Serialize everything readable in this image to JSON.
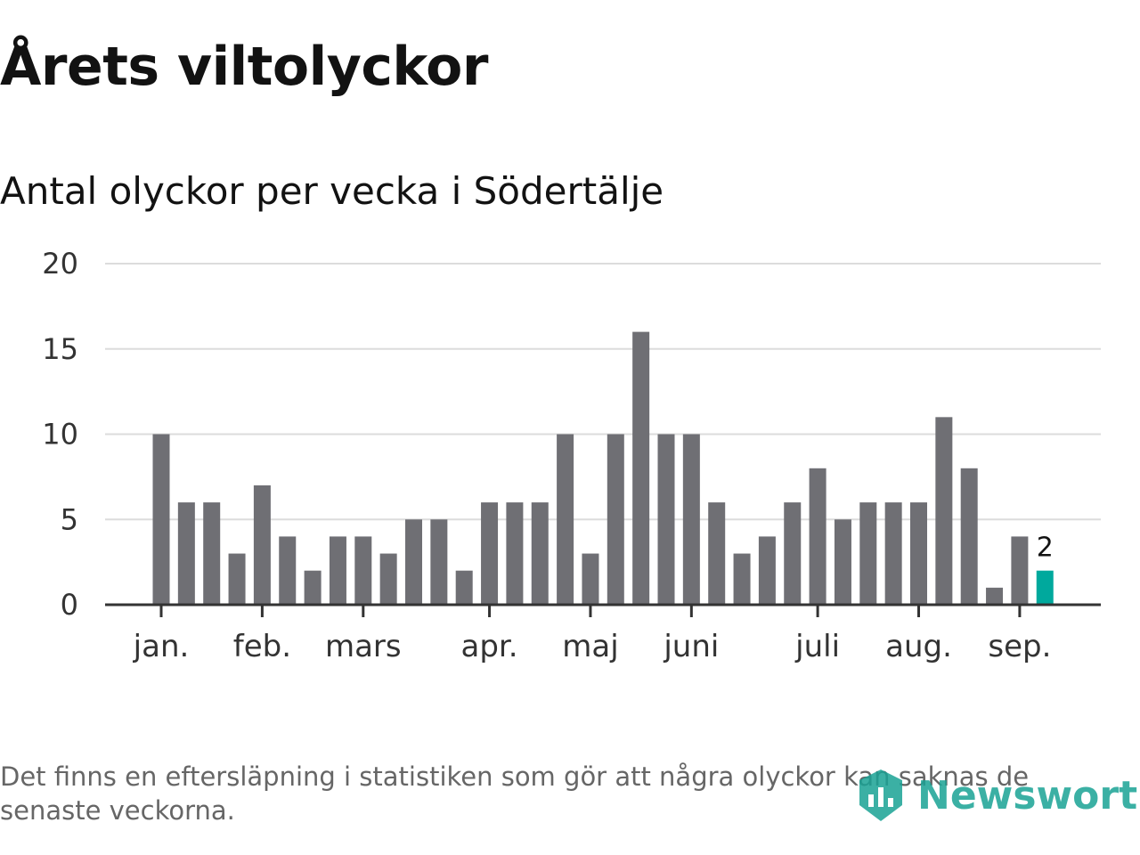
{
  "title": "Årets viltolyckor",
  "subtitle": "Antal olyckor per vecka i Södertälje",
  "footnote": "Det finns en eftersläpning i statistiken som gör att några olyckor kan saknas de senaste veckorna.",
  "logo": {
    "text": "Newsworthy",
    "icon": "newsworthy-logo-icon"
  },
  "colors": {
    "bar": "#6f6f74",
    "highlight": "#00a99d",
    "grid": "#dcdcdc",
    "axis": "#333333"
  },
  "chart_data": {
    "type": "bar",
    "ylim": [
      0,
      20
    ],
    "yticks": [
      0,
      5,
      10,
      15,
      20
    ],
    "grid": true,
    "month_labels": [
      "jan.",
      "feb.",
      "mars",
      "apr.",
      "maj",
      "juni",
      "juli",
      "aug.",
      "sep."
    ],
    "month_label_week_index": [
      0.0,
      4.0,
      8.0,
      13.0,
      17.0,
      21.0,
      26.0,
      30.0,
      34.0
    ],
    "values": [
      10,
      6,
      6,
      3,
      7,
      4,
      2,
      4,
      4,
      3,
      5,
      5,
      2,
      6,
      6,
      6,
      10,
      3,
      10,
      16,
      10,
      10,
      6,
      3,
      4,
      6,
      8,
      5,
      6,
      6,
      6,
      11,
      8,
      1,
      4,
      2
    ],
    "highlight_index": 35,
    "data_labels": [
      {
        "index": 35,
        "text": "2"
      }
    ]
  }
}
